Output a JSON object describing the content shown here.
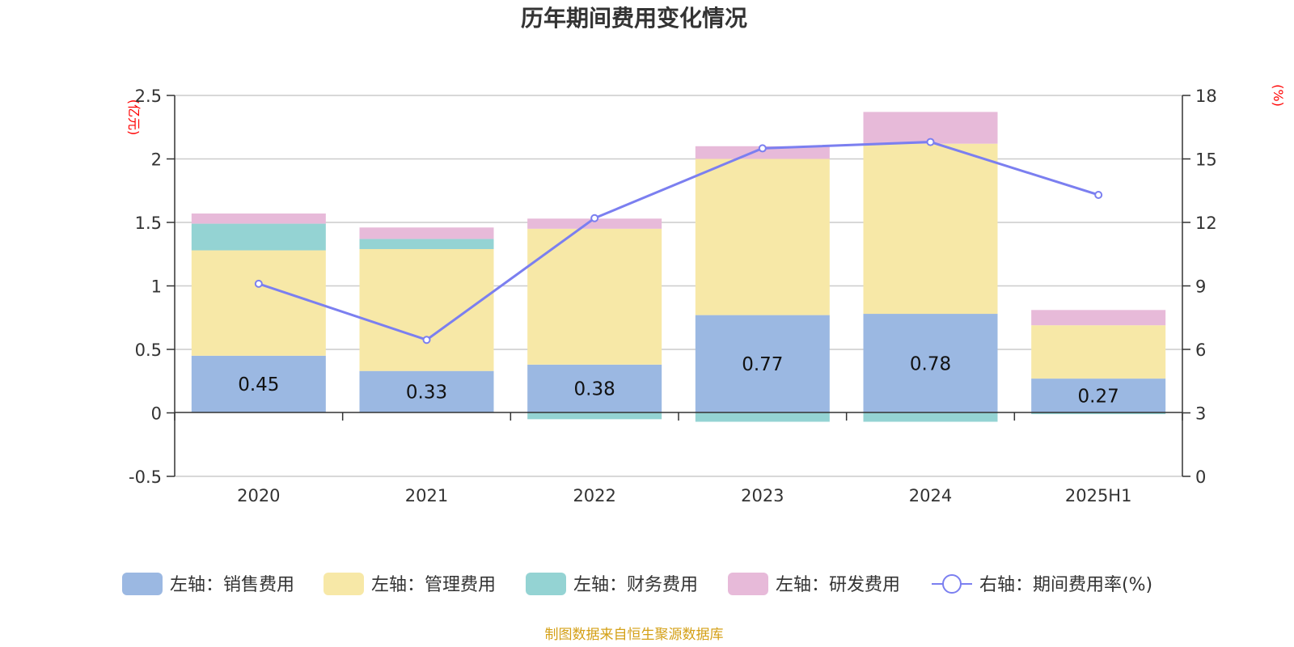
{
  "chart_data": {
    "type": "bar",
    "stacked": true,
    "title": "历年期间费用变化情况",
    "categories": [
      "2020",
      "2021",
      "2022",
      "2023",
      "2024",
      "2025H1"
    ],
    "left_axis": {
      "unit": "(亿元)",
      "ylim": [
        -0.5,
        2.5
      ],
      "ticks": [
        "2.5",
        "2",
        "1.5",
        "1",
        "0.5",
        "0",
        "-0.5"
      ],
      "tick_values": [
        2.5,
        2,
        1.5,
        1,
        0.5,
        0,
        -0.5
      ]
    },
    "right_axis": {
      "unit": "(%)",
      "ylim": [
        0,
        18
      ],
      "ticks": [
        "18",
        "15",
        "12",
        "9",
        "6",
        "3",
        "0"
      ],
      "tick_values": [
        18,
        15,
        12,
        9,
        6,
        3,
        0
      ]
    },
    "series": [
      {
        "name": "左轴：销售费用",
        "color": "#9bb8e2",
        "values": [
          0.45,
          0.33,
          0.38,
          0.77,
          0.78,
          0.27
        ],
        "labels": [
          "0.45",
          "0.33",
          "0.38",
          "0.77",
          "0.78",
          "0.27"
        ]
      },
      {
        "name": "左轴：管理费用",
        "color": "#f7e8a7",
        "values": [
          0.83,
          0.96,
          1.07,
          1.23,
          1.34,
          0.42
        ]
      },
      {
        "name": "左轴：财务费用",
        "color": "#94d3d3",
        "values": [
          0.21,
          0.08,
          -0.05,
          -0.07,
          -0.07,
          -0.01
        ]
      },
      {
        "name": "左轴：研发费用",
        "color": "#e7bad9",
        "values": [
          0.08,
          0.09,
          0.08,
          0.1,
          0.25,
          0.12
        ]
      }
    ],
    "line_series": {
      "name": "右轴：期间费用率(%)",
      "color": "#7b7ff0",
      "values": [
        9.1,
        6.45,
        12.2,
        15.5,
        15.8,
        13.3
      ]
    },
    "grid": true,
    "legend_position": "bottom",
    "source": "制图数据来自恒生聚源数据库"
  }
}
